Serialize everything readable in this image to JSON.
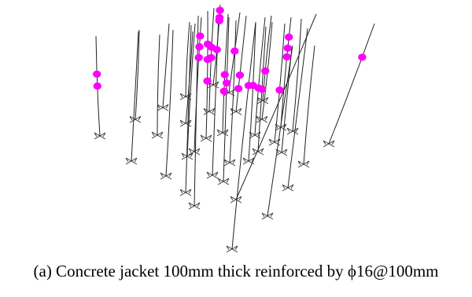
{
  "figure": {
    "caption": "(a) Concrete jacket 100mm thick reinforced by ϕ16@100mm"
  },
  "colors": {
    "column_line": "#222222",
    "support_marker": "#333333",
    "plastic_hinge": "#ff00ff",
    "background": "#ffffff"
  },
  "chart_data": {
    "type": "diagram",
    "column_count": 36,
    "plastic_hinge_count": 30
  }
}
